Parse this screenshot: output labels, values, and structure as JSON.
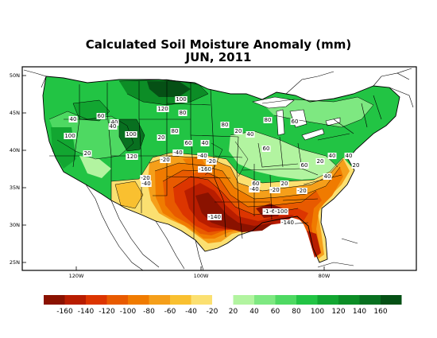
{
  "title": "Calculated Soil Moisture Anomaly (mm)",
  "subtitle": "JUN, 2011",
  "lat_labels": [
    "50N",
    "45N",
    "40N",
    "35N",
    "30N",
    "25N"
  ],
  "lon_labels": [
    "120W",
    "100W",
    "80W"
  ],
  "colorbar": {
    "ticks": [
      "-160",
      "-140",
      "-120",
      "-100",
      "-80",
      "-60",
      "-40",
      "-20",
      "20",
      "40",
      "60",
      "80",
      "100",
      "120",
      "140",
      "160"
    ],
    "colors": [
      "#8a1200",
      "#b81d00",
      "#dc3500",
      "#e85a00",
      "#f07b00",
      "#f59f1a",
      "#f9c030",
      "#fbe071",
      "#ffffff",
      "#b2f4a0",
      "#7ee881",
      "#4ed962",
      "#22c444",
      "#12a631",
      "#0c8d26",
      "#087020",
      "#055015"
    ]
  },
  "contour_labels": [
    {
      "text": "100"
    },
    {
      "text": "120"
    },
    {
      "text": "80"
    },
    {
      "text": "60"
    },
    {
      "text": "40"
    },
    {
      "text": "40"
    },
    {
      "text": "100"
    },
    {
      "text": "100"
    },
    {
      "text": "20"
    },
    {
      "text": "20"
    },
    {
      "text": "120"
    },
    {
      "text": "80"
    },
    {
      "text": "60"
    },
    {
      "text": "40"
    },
    {
      "text": "20"
    },
    {
      "text": "40"
    },
    {
      "text": "80"
    },
    {
      "text": "20"
    },
    {
      "text": "40"
    },
    {
      "text": "60"
    },
    {
      "text": "60"
    },
    {
      "text": "40"
    },
    {
      "text": "20"
    },
    {
      "text": "60"
    },
    {
      "text": "40"
    },
    {
      "text": "-40"
    },
    {
      "text": "-20"
    },
    {
      "text": "-40"
    },
    {
      "text": "-20"
    },
    {
      "text": "-160"
    },
    {
      "text": "-20"
    },
    {
      "text": "-40"
    },
    {
      "text": "-20"
    },
    {
      "text": "-140"
    },
    {
      "text": "-60"
    },
    {
      "text": "-1"
    },
    {
      "text": "-100"
    },
    {
      "text": "-140"
    },
    {
      "text": "60"
    },
    {
      "text": "-40"
    },
    {
      "text": "-20"
    },
    {
      "text": "20"
    },
    {
      "text": "40"
    },
    {
      "text": "20"
    },
    {
      "text": "80"
    }
  ]
}
